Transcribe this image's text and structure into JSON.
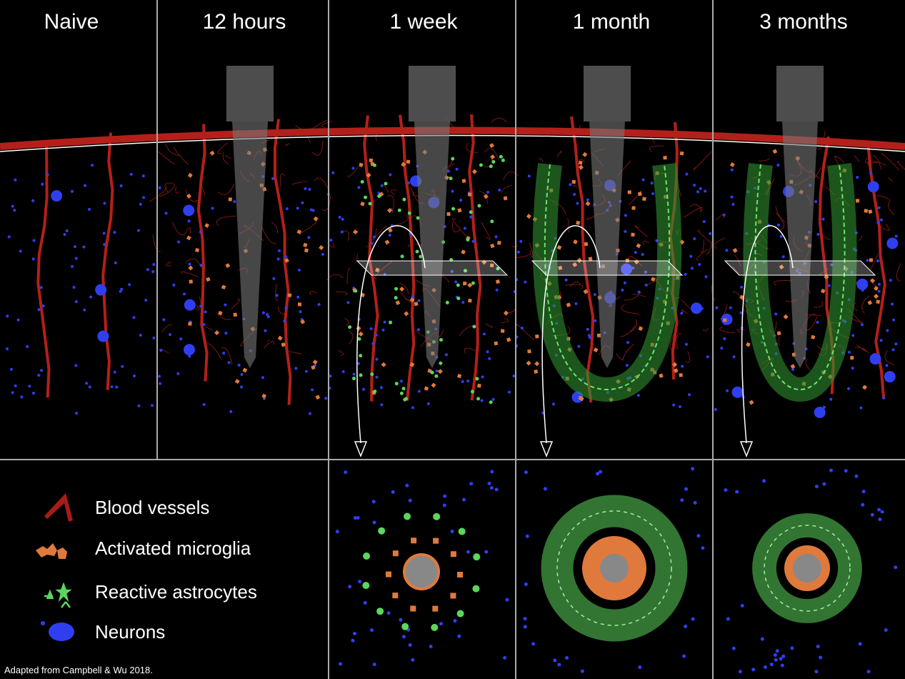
{
  "panels": [
    {
      "title": "Naive"
    },
    {
      "title": "12 hours"
    },
    {
      "title": "1 week"
    },
    {
      "title": "1 month"
    },
    {
      "title": "3 months"
    }
  ],
  "legend": [
    {
      "label": "Blood vessels"
    },
    {
      "label": "Activated microglia"
    },
    {
      "label": "Reactive astrocytes"
    },
    {
      "label": "Neurons"
    }
  ],
  "credit": "Adapted from Campbell & Wu 2018."
}
